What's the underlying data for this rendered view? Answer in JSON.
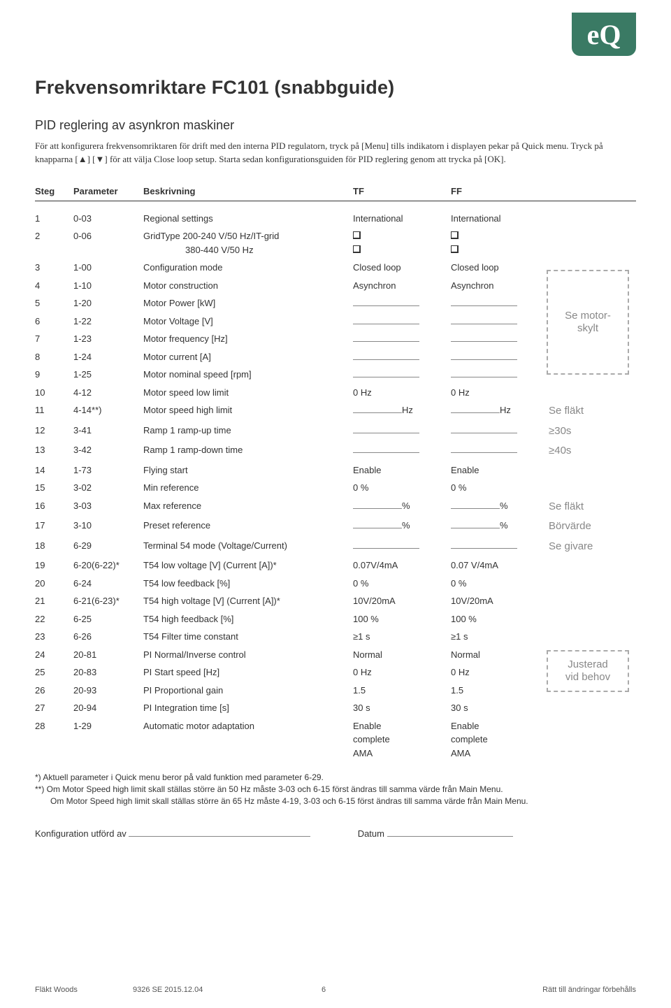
{
  "logo": "eQ",
  "title": "Frekvensomriktare FC101 (snabbguide)",
  "subtitle": "PID reglering av asynkron maskiner",
  "intro": "För att konfigurera frekvensomriktaren för drift med den interna PID regulatorn, tryck på [Menu] tills indikatorn i displayen pekar på Quick menu. Tryck på knapparna [▲] [▼] för att välja Close loop setup. Starta sedan konfigurationsguiden för PID reglering genom att trycka på [OK].",
  "headers": {
    "steg": "Steg",
    "param": "Parameter",
    "besk": "Beskrivning",
    "tf": "TF",
    "ff": "FF"
  },
  "rows": [
    {
      "n": "1",
      "p": "0-03",
      "d": "Regional settings",
      "tf": "International",
      "ff": "International"
    },
    {
      "n": "2",
      "p": "0-06",
      "d": "GridType 200-240 V/50 Hz/IT-grid",
      "d2": "380-440 V/50 Hz",
      "tf": "chk2",
      "ff": "chk2"
    },
    {
      "n": "3",
      "p": "1-00",
      "d": "Configuration mode",
      "tf": "Closed loop",
      "ff": "Closed loop"
    },
    {
      "n": "4",
      "p": "1-10",
      "d": "Motor construction",
      "tf": "Asynchron",
      "ff": "Asynchron"
    },
    {
      "n": "5",
      "p": "1-20",
      "d": "Motor Power [kW]",
      "tf": "blank",
      "ff": "blank"
    },
    {
      "n": "6",
      "p": "1-22",
      "d": "Motor Voltage [V]",
      "tf": "blank",
      "ff": "blank"
    },
    {
      "n": "7",
      "p": "1-23",
      "d": "Motor frequency [Hz]",
      "tf": "blank",
      "ff": "blank"
    },
    {
      "n": "8",
      "p": "1-24",
      "d": "Motor current [A]",
      "tf": "blank",
      "ff": "blank"
    },
    {
      "n": "9",
      "p": "1-25",
      "d": "Motor nominal speed [rpm]",
      "tf": "blank",
      "ff": "blank"
    },
    {
      "n": "10",
      "p": "4-12",
      "d": "Motor speed low limit",
      "tf": "0 Hz",
      "ff": "0 Hz"
    },
    {
      "n": "11",
      "p": "4-14**)",
      "d": "Motor speed high limit",
      "tf": "blankHz",
      "ff": "blankHz",
      "note": "Se fläkt"
    },
    {
      "n": "12",
      "p": "3-41",
      "d": "Ramp 1 ramp-up time",
      "tf": "blank",
      "ff": "blank",
      "note": "≥30s"
    },
    {
      "n": "13",
      "p": "3-42",
      "d": "Ramp 1 ramp-down time",
      "tf": "blank",
      "ff": "blank",
      "note": "≥40s"
    },
    {
      "n": "14",
      "p": "1-73",
      "d": "Flying start",
      "tf": "Enable",
      "ff": "Enable"
    },
    {
      "n": "15",
      "p": "3-02",
      "d": "Min reference",
      "tf": "0 %",
      "ff": "0 %"
    },
    {
      "n": "16",
      "p": "3-03",
      "d": "Max reference",
      "tf": "blankPct",
      "ff": "blankPct",
      "note": "Se fläkt"
    },
    {
      "n": "17",
      "p": "3-10",
      "d": "Preset reference",
      "tf": "blankPct",
      "ff": "blankPct",
      "note": "Börvärde"
    },
    {
      "n": "18",
      "p": "6-29",
      "d": "Terminal 54 mode (Voltage/Current)",
      "tf": "blank",
      "ff": "blank",
      "note": "Se givare"
    },
    {
      "n": "19",
      "p": "6-20(6-22)*",
      "d": "T54 low voltage [V] (Current [A])*",
      "tf": "0.07V/4mA",
      "ff": "0.07 V/4mA"
    },
    {
      "n": "20",
      "p": "6-24",
      "d": "T54 low feedback [%]",
      "tf": "0 %",
      "ff": "0 %"
    },
    {
      "n": "21",
      "p": "6-21(6-23)*",
      "d": "T54 high voltage [V] (Current [A])*",
      "tf": "10V/20mA",
      "ff": "10V/20mA"
    },
    {
      "n": "22",
      "p": "6-25",
      "d": "T54 high feedback [%]",
      "tf": "100 %",
      "ff": "100 %"
    },
    {
      "n": "23",
      "p": "6-26",
      "d": "T54 Filter time constant",
      "tf": "≥1 s",
      "ff": "≥1 s"
    },
    {
      "n": "24",
      "p": "20-81",
      "d": "PI Normal/Inverse control",
      "tf": "Normal",
      "ff": "Normal"
    },
    {
      "n": "25",
      "p": "20-83",
      "d": "PI Start speed [Hz]",
      "tf": "0 Hz",
      "ff": "0 Hz"
    },
    {
      "n": "26",
      "p": "20-93",
      "d": "PI Proportional gain",
      "tf": "1.5",
      "ff": "1.5"
    },
    {
      "n": "27",
      "p": "20-94",
      "d": "PI Integration time [s]",
      "tf": "30 s",
      "ff": "30 s"
    },
    {
      "n": "28",
      "p": "1-29",
      "d": "Automatic motor adaptation",
      "tf": "Enable complete AMA",
      "ff": "Enable complete AMA",
      "multi": true
    }
  ],
  "boxes": {
    "motor": "Se motor-\nskylt",
    "justerad": "Justerad\nvid behov"
  },
  "footnotes": [
    "*) Aktuell parameter i Quick menu beror på vald funktion med parameter 6-29.",
    "**) Om Motor Speed high limit skall ställas större än 50 Hz måste 3-03 och 6-15 först ändras till samma värde från Main Menu.",
    "Om Motor Speed high limit skall ställas större än 65 Hz måste 4-19, 3-03 och 6-15 först ändras till samma värde från Main Menu."
  ],
  "sig": {
    "left": "Konfiguration utförd av",
    "right": "Datum"
  },
  "footer": {
    "left": "Fläkt Woods",
    "mid": "9326 SE 2015.12.04",
    "page": "6",
    "right": "Rätt till ändringar förbehålls"
  }
}
